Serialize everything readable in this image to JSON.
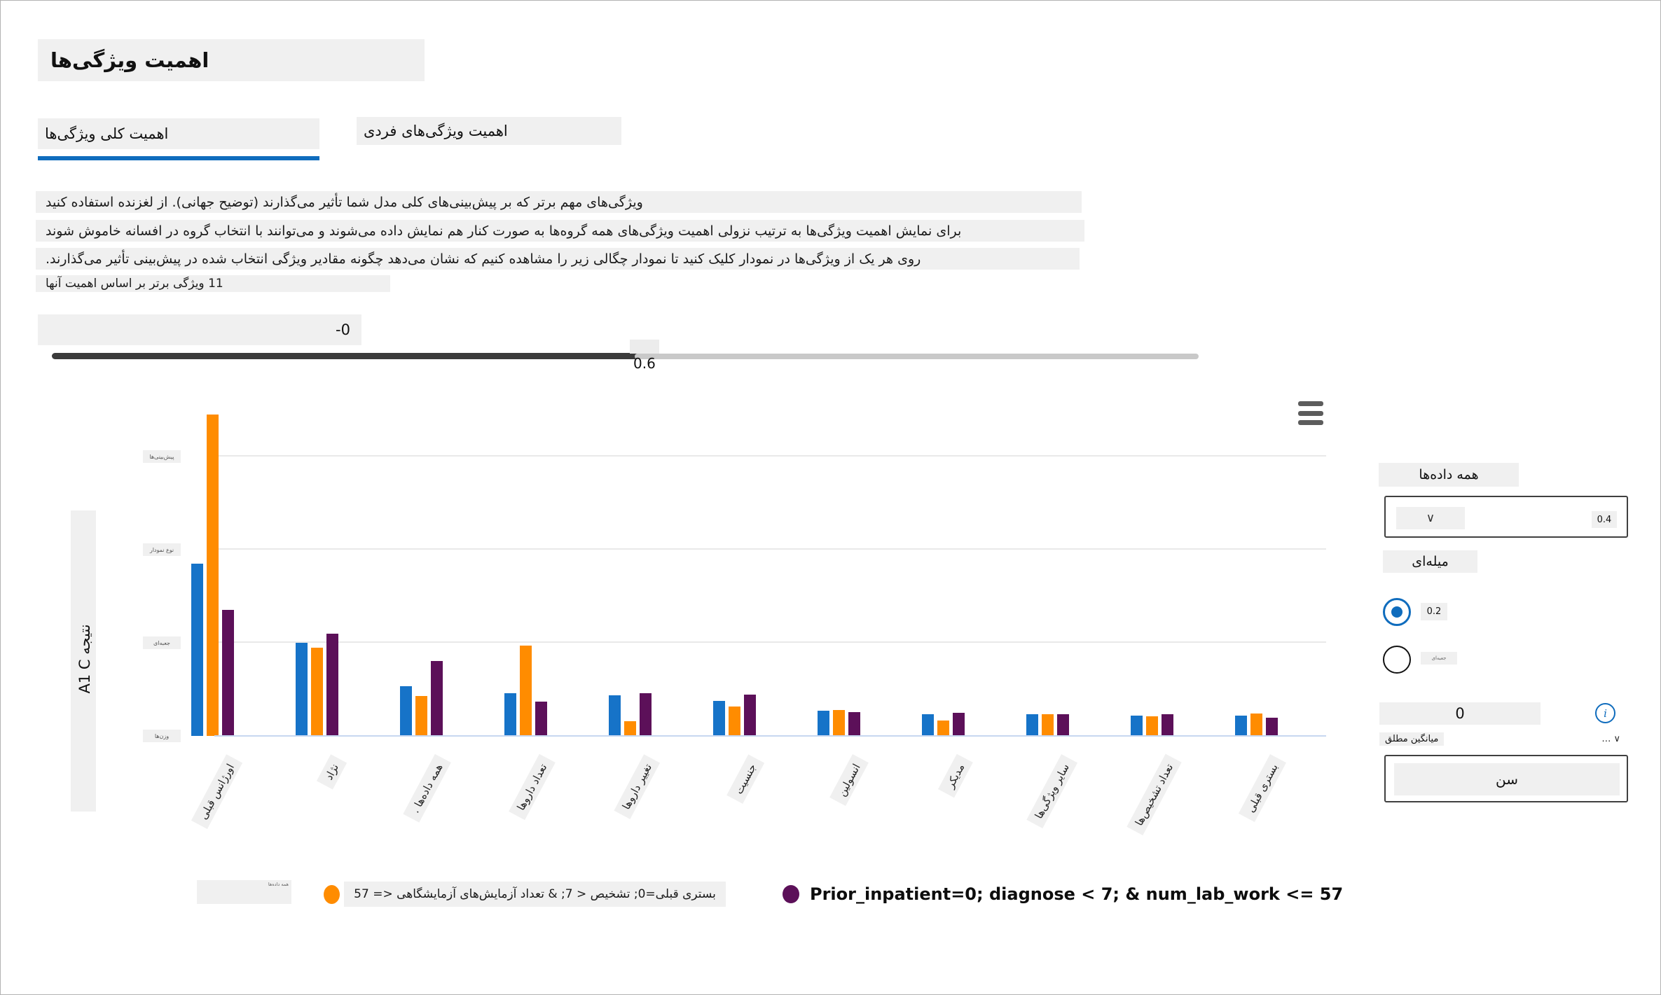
{
  "page": {
    "title": "اهمیت ویژگی‌ها"
  },
  "tabs": [
    {
      "label": "اهمیت کلی ویژگی‌ها",
      "active": true
    },
    {
      "label": "اهمیت ویژگی‌های فردی",
      "active": false
    }
  ],
  "description_lines": [
    "ویژگی‌های مهم برتر که بر پیش‌بینی‌های کلی مدل شما تأثیر می‌گذارند (توضیح جهانی). از لغزنده استفاده کنید",
    "برای نمایش اهمیت ویژگی‌ها به ترتیب نزولی اهمیت ویژگی‌های همه گروه‌ها به صورت کنار هم نمایش داده می‌شوند و می‌توانند با انتخاب گروه در افسانه خاموش شوند",
    "روی هر یک از ویژگی‌ها در نمودار کلیک کنید تا نمودار چگالی زیر را مشاهده کنیم که نشان می‌دهد چگونه مقادیر ویژگی انتخاب شده در پیش‌بینی تأثیر می‌گذارند.",
    "11 ویژگی برتر بر اساس اهمیت آنها"
  ],
  "slider": {
    "range_label": "-0",
    "value_label": "0.6"
  },
  "chart_data": {
    "type": "bar",
    "title": "",
    "ylabel": "نتیجه A1 C",
    "xlabel": "",
    "ylim": [
      0,
      0.72
    ],
    "gridlines": [
      0.2,
      0.4,
      0.6
    ],
    "grid": true,
    "legend_position": "bottom",
    "categories": [
      "اورژانس قبلی",
      "نژاد",
      "همه داده‌ها .",
      "تعداد داروها",
      "تغییر داروها",
      "جنسیت",
      "انسولین",
      "مدیکر",
      "سایر ویژگی‌ها",
      "تعداد تشخیص‌ها",
      "بستری قبلی"
    ],
    "ytick_labels": [
      {
        "value": 0.6,
        "label": "پیش‌بینی‌ها"
      },
      {
        "value": 0.4,
        "label": "نوع نمودار"
      },
      {
        "value": 0.2,
        "label": "جعبه‌ای"
      },
      {
        "value": 0.0,
        "label": "وزن‌ها"
      }
    ],
    "series": [
      {
        "name": "همه داده‌ها",
        "color": "#1673c8",
        "values": [
          0.37,
          0.2,
          0.107,
          0.092,
          0.087,
          0.075,
          0.054,
          0.047,
          0.047,
          0.044,
          0.044
        ]
      },
      {
        "name": "بستری قبلی=0; تشخیص < 7; & تعداد آزمایش‌های آزمایشگاهی <= 57",
        "color": "#ff8c00",
        "values": [
          0.69,
          0.19,
          0.086,
          0.194,
          0.032,
          0.063,
          0.056,
          0.033,
          0.047,
          0.042,
          0.048
        ]
      },
      {
        "name": "Prior_inpatient=0; diagnose < 7; & num_lab_work <= 57",
        "color": "#5c1059",
        "values": [
          0.27,
          0.22,
          0.161,
          0.074,
          0.092,
          0.089,
          0.051,
          0.05,
          0.047,
          0.047,
          0.039
        ]
      }
    ]
  },
  "panel": {
    "cohort_label": "همه داده‌ها",
    "dropdown": {
      "caret": "∨",
      "value": "0.4"
    },
    "chart_type_chip": "میله‌ای",
    "radios": [
      {
        "label": "0.2",
        "selected": true
      },
      {
        "label": "جعبه‌ای",
        "selected": false
      }
    ],
    "zero_field": "0",
    "info_glyph": "i",
    "sort_label": "میانگین مطلق",
    "sort_ellipsis": "…",
    "sort_caret": "∨",
    "search_value": "سن"
  }
}
